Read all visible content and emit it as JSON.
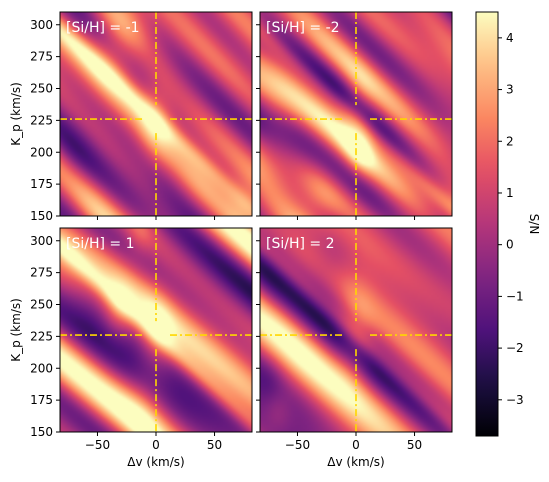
{
  "chart_data": {
    "type": "heatmap",
    "panels": [
      {
        "label": "[Si/H] = -1",
        "row": 0,
        "col": 0,
        "seed": 11
      },
      {
        "label": "[Si/H] = -2",
        "row": 0,
        "col": 1,
        "seed": 23
      },
      {
        "label": "[Si/H] = 1",
        "row": 1,
        "col": 0,
        "seed": 37
      },
      {
        "label": "[Si/H] = 2",
        "row": 1,
        "col": 1,
        "seed": 53
      }
    ],
    "xlabel": "Δv (km/s)",
    "ylabel": "K_p (km/s)",
    "xlim": [
      -82,
      82
    ],
    "ylim": [
      150,
      310
    ],
    "xticks": [
      -50,
      0,
      50
    ],
    "xtick_labels": [
      "−50",
      "0",
      "50"
    ],
    "yticks": [
      150,
      175,
      200,
      225,
      250,
      275,
      300
    ],
    "yticks_labels": [
      "150",
      "175",
      "200",
      "225",
      "250",
      "275",
      "300"
    ],
    "markers": {
      "dv": 0,
      "kp": 226,
      "color": "#FFD700"
    },
    "colorbar": {
      "label": "S/N",
      "range": [
        -3.7,
        4.5
      ],
      "ticks": [
        -3,
        -2,
        -1,
        0,
        1,
        2,
        3,
        4
      ],
      "tick_labels": [
        "−3",
        "−2",
        "−1",
        "0",
        "1",
        "2",
        "3",
        "4"
      ],
      "colormap": "magma"
    }
  }
}
